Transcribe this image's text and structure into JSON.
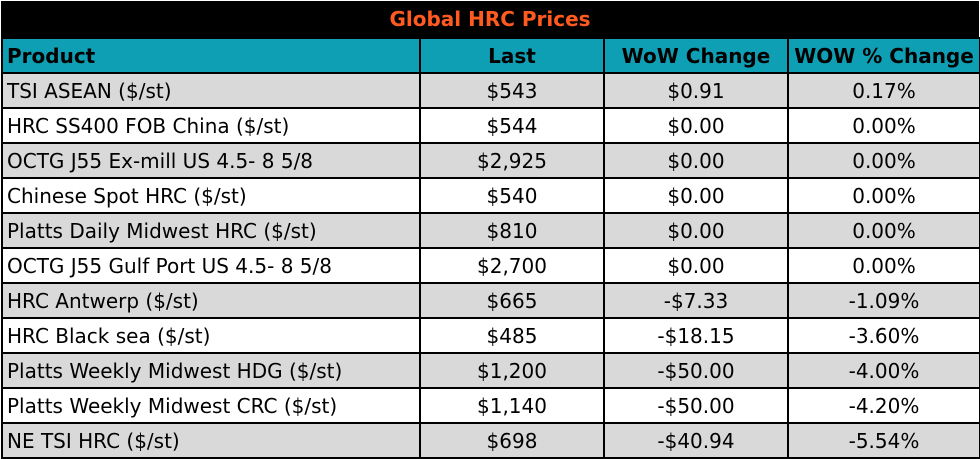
{
  "title": "Global HRC Prices",
  "headers": {
    "product": "Product",
    "last": "Last",
    "wow_change": "WoW Change",
    "wow_pct_change": "WOW % Change"
  },
  "rows": [
    {
      "product": "TSI ASEAN ($/st)",
      "last": "$543",
      "wow_change": "$0.91",
      "wow_pct_change": "0.17%"
    },
    {
      "product": "HRC SS400 FOB China ($/st)",
      "last": "$544",
      "wow_change": "$0.00",
      "wow_pct_change": "0.00%"
    },
    {
      "product": "OCTG J55 Ex-mill US 4.5- 8 5/8",
      "last": "$2,925",
      "wow_change": "$0.00",
      "wow_pct_change": "0.00%"
    },
    {
      "product": "Chinese Spot HRC ($/st)",
      "last": "$540",
      "wow_change": "$0.00",
      "wow_pct_change": "0.00%"
    },
    {
      "product": "Platts Daily Midwest HRC ($/st)",
      "last": "$810",
      "wow_change": "$0.00",
      "wow_pct_change": "0.00%"
    },
    {
      "product": "OCTG J55 Gulf Port US 4.5- 8 5/8",
      "last": "$2,700",
      "wow_change": "$0.00",
      "wow_pct_change": "0.00%"
    },
    {
      "product": "HRC Antwerp ($/st)",
      "last": "$665",
      "wow_change": "-$7.33",
      "wow_pct_change": "-1.09%"
    },
    {
      "product": "HRC Black sea ($/st)",
      "last": "$485",
      "wow_change": "-$18.15",
      "wow_pct_change": "-3.60%"
    },
    {
      "product": "Platts Weekly Midwest HDG ($/st)",
      "last": "$1,200",
      "wow_change": "-$50.00",
      "wow_pct_change": "-4.00%"
    },
    {
      "product": "Platts Weekly Midwest CRC ($/st)",
      "last": "$1,140",
      "wow_change": "-$50.00",
      "wow_pct_change": "-4.20%"
    },
    {
      "product": "NE TSI HRC ($/st)",
      "last": "$698",
      "wow_change": "-$40.94",
      "wow_pct_change": "-5.54%"
    }
  ],
  "colors": {
    "title_background": "#000000",
    "title_text": "#ff5a1f",
    "header_background": "#0e9fb4",
    "shaded_row": "#d9d9d9",
    "plain_row": "#ffffff"
  }
}
